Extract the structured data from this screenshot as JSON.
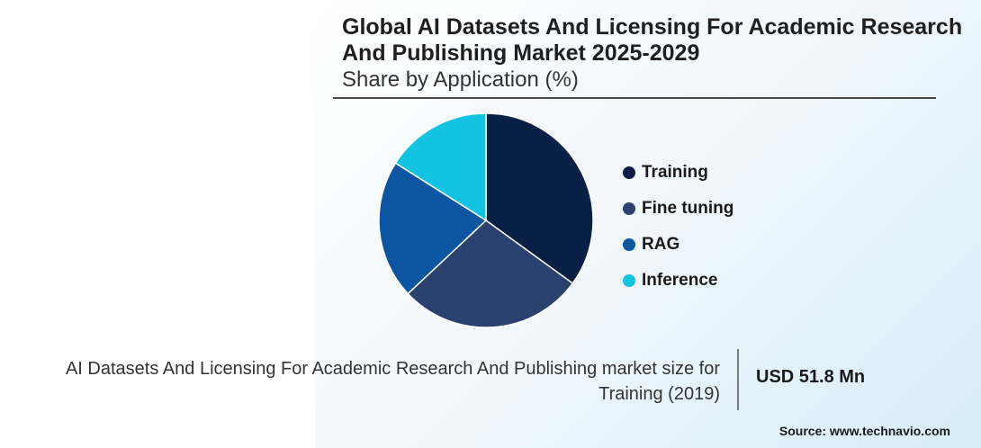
{
  "header": {
    "title": "Global AI Datasets And Licensing For Academic Research And Publishing Market 2025-2029",
    "subtitle": "Share by Application (%)"
  },
  "chart_data": {
    "type": "pie",
    "title": "Global AI Datasets And Licensing For Academic Research And Publishing Market 2025-2029",
    "subtitle": "Share by Application (%)",
    "categories": [
      "Training",
      "Fine tuning",
      "RAG",
      "Inference"
    ],
    "values": [
      35,
      28,
      21,
      16
    ],
    "colors": [
      "#0a1f45",
      "#2b4170",
      "#0b55a3",
      "#12c3e4"
    ],
    "legend": "right"
  },
  "footer": {
    "description": "AI Datasets And Licensing For Academic Research And Publishing market size for Training (2019)",
    "value": "USD 51.8 Mn",
    "source": "Source: www.technavio.com"
  }
}
